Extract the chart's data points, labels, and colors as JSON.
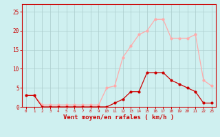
{
  "x": [
    0,
    1,
    2,
    3,
    4,
    5,
    6,
    7,
    8,
    9,
    10,
    11,
    12,
    13,
    14,
    15,
    16,
    17,
    18,
    19,
    20,
    21,
    22,
    23
  ],
  "wind_avg": [
    3,
    3,
    0,
    0,
    0,
    0,
    0,
    0,
    0,
    0,
    0,
    1,
    2,
    4,
    4,
    9,
    9,
    9,
    7,
    6,
    5,
    4,
    1,
    1
  ],
  "wind_gust": [
    3,
    3,
    0.5,
    0.5,
    0.5,
    0.5,
    0.5,
    0.5,
    0.5,
    0.5,
    5,
    5.5,
    13,
    16,
    19,
    20,
    23,
    23,
    18,
    18,
    18,
    19,
    7,
    5.5
  ],
  "wind_avg_color": "#cc0000",
  "wind_gust_color": "#ffaaaa",
  "bg_color": "#cff0f0",
  "grid_color": "#aacccc",
  "axis_color": "#cc0000",
  "tick_color": "#cc0000",
  "xlabel": "Vent moyen/en rafales ( km/h )",
  "ylabel_ticks": [
    0,
    5,
    10,
    15,
    20,
    25
  ],
  "ylim": [
    0,
    27
  ],
  "xlim": [
    -0.5,
    23.5
  ],
  "marker": "o",
  "marker_size": 2,
  "line_width": 0.9
}
